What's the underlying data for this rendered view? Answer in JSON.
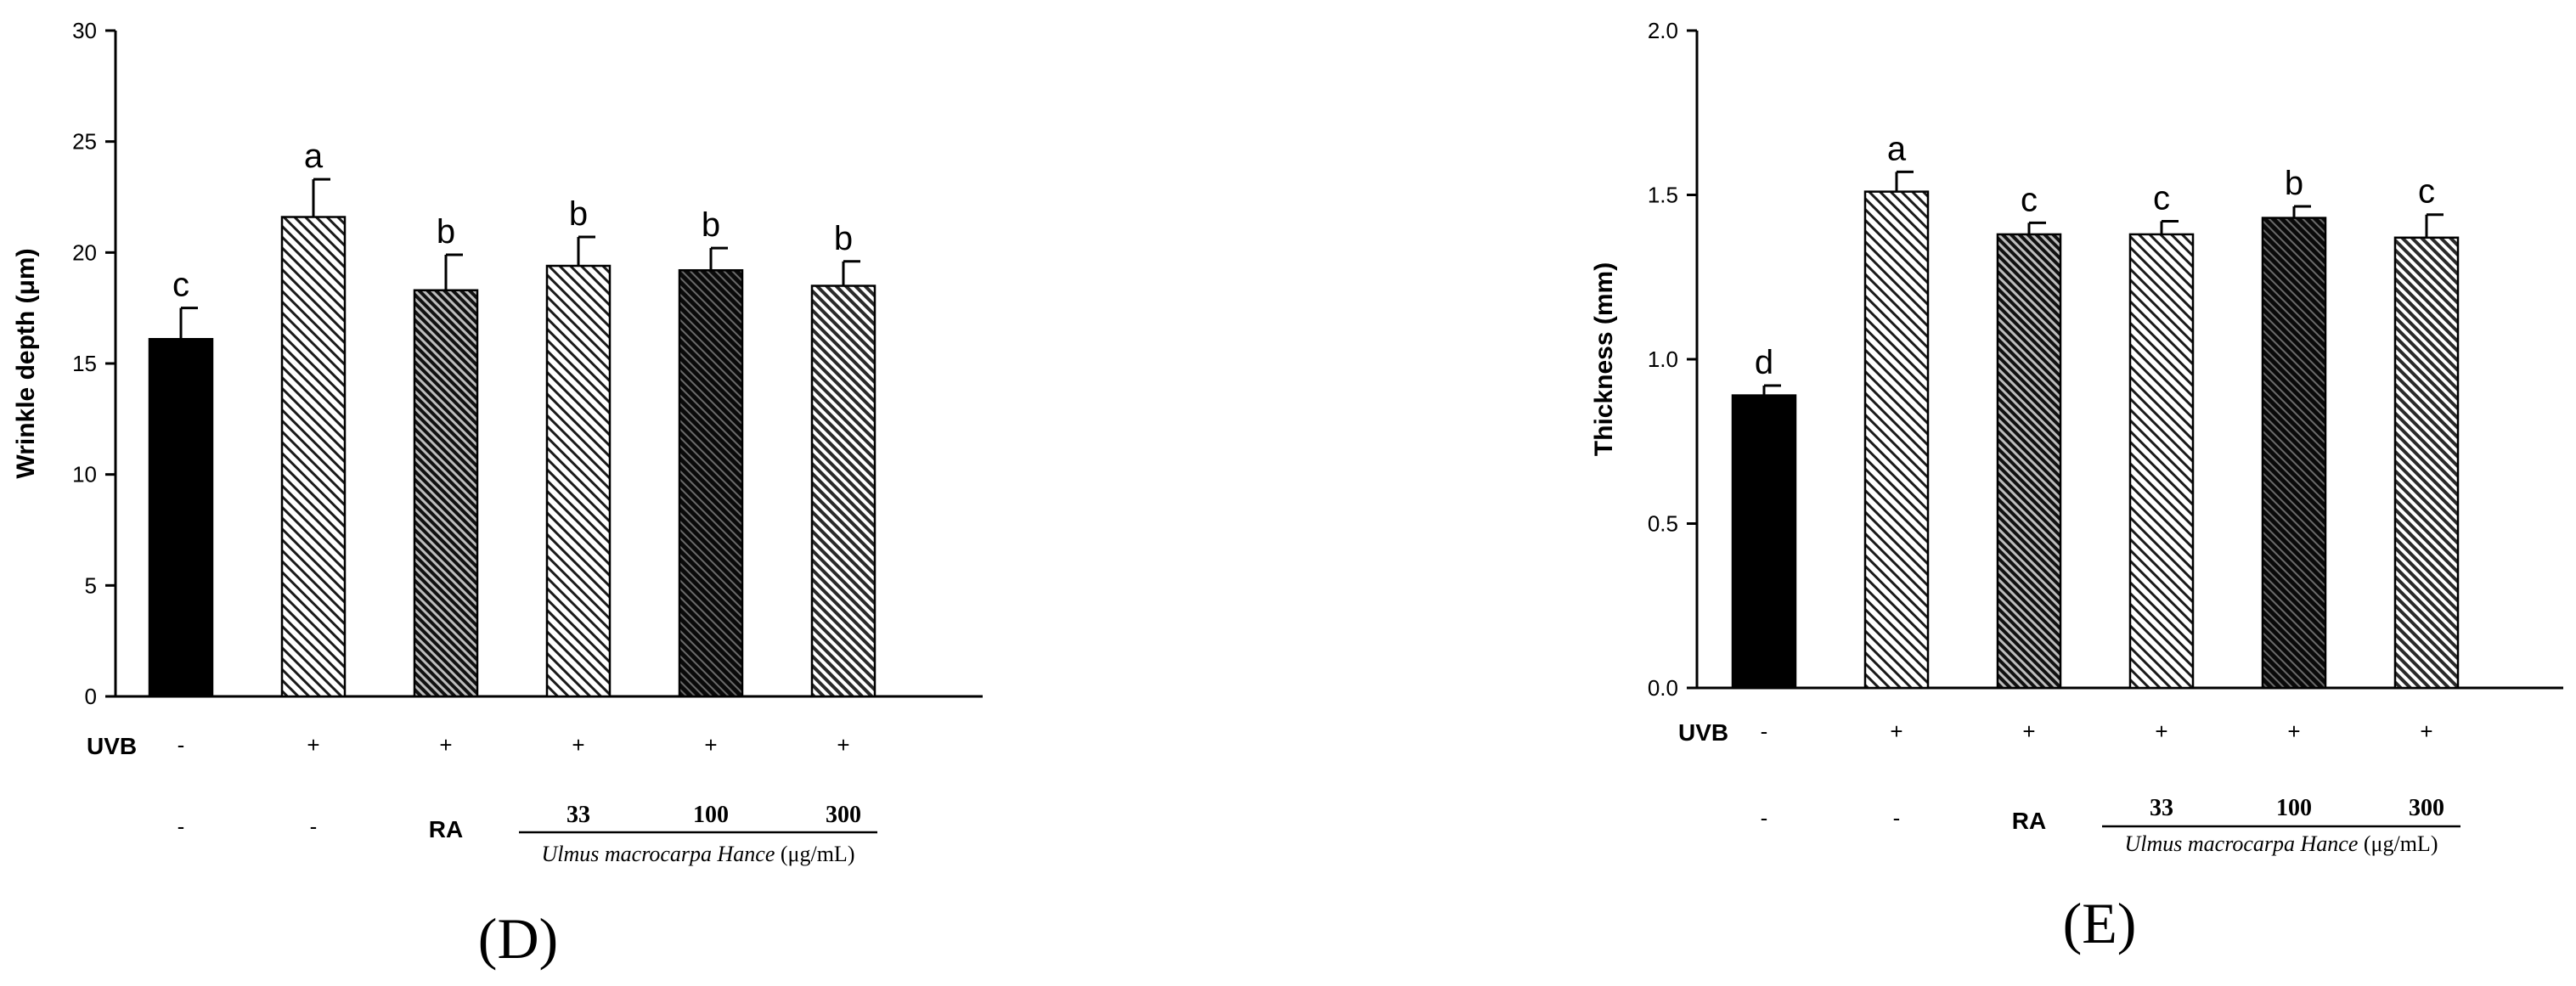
{
  "chart_data": [
    {
      "type": "bar",
      "panel_label": "(D)",
      "ylabel": "Wrinkle depth (μm)",
      "ylim": [
        0,
        30
      ],
      "yticks": [
        0,
        5,
        10,
        15,
        20,
        25,
        30
      ],
      "values": [
        16.1,
        21.6,
        18.3,
        19.4,
        19.2,
        18.5
      ],
      "errors": [
        1.4,
        1.7,
        1.6,
        1.3,
        1.0,
        1.1
      ],
      "sig_letters": [
        "c",
        "a",
        "b",
        "b",
        "b",
        "b"
      ],
      "fills": [
        "solid-black",
        "hatch-light",
        "hatch-dark",
        "hatch-light",
        "hatch-darkest",
        "hatch-mid"
      ],
      "uvb_label": "UVB",
      "uvb": [
        "-",
        "+",
        "+",
        "+",
        "+",
        "+"
      ],
      "treatment": [
        "-",
        "-",
        "RA",
        "33",
        "100",
        "300"
      ],
      "group_label_italic": "Ulmus macrocarpa Hance",
      "group_label_unit": " (μg/mL)"
    },
    {
      "type": "bar",
      "panel_label": "(E)",
      "ylabel": "Thickness (mm)",
      "ylim": [
        0,
        2.0
      ],
      "yticks": [
        "0.0",
        "0.5",
        "1.0",
        "1.5",
        "2.0"
      ],
      "values": [
        0.89,
        1.51,
        1.38,
        1.38,
        1.43,
        1.37
      ],
      "errors": [
        0.03,
        0.06,
        0.035,
        0.04,
        0.035,
        0.07
      ],
      "sig_letters": [
        "d",
        "a",
        "c",
        "c",
        "b",
        "c"
      ],
      "fills": [
        "solid-black",
        "hatch-light",
        "hatch-dark",
        "hatch-light",
        "hatch-darkest",
        "hatch-mid"
      ],
      "uvb_label": "UVB",
      "uvb": [
        "-",
        "+",
        "+",
        "+",
        "+",
        "+"
      ],
      "treatment": [
        "-",
        "-",
        "RA",
        "33",
        "100",
        "300"
      ],
      "group_label_italic": "Ulmus macrocarpa Hance",
      "group_label_unit": " (μg/mL)"
    }
  ]
}
